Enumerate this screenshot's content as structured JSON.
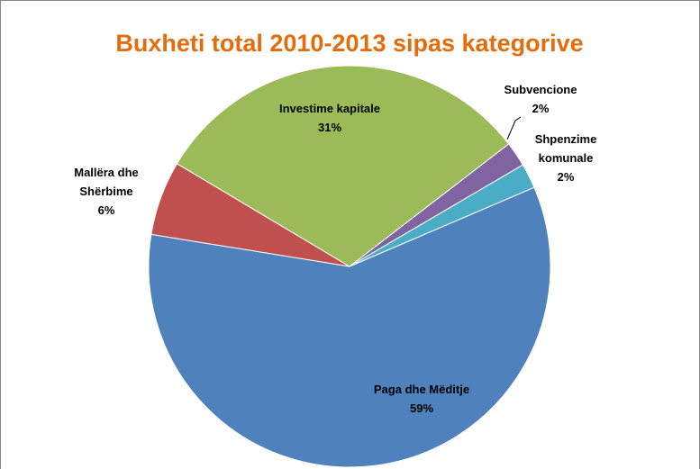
{
  "chart_data": {
    "type": "pie",
    "title": "Buxheti total 2010-2013 sipas kategorive",
    "categories": [
      "Paga dhe Mëditje",
      "Mallëra dhe\nShërbime",
      "Investime kapitale",
      "Subvencione",
      "Shpenzime\nkomunale"
    ],
    "values": [
      59,
      6,
      31,
      2,
      2
    ],
    "value_labels": [
      "59%",
      "6%",
      "31%",
      "2%",
      "2%"
    ],
    "colors": [
      "#4f81bd",
      "#c0504d",
      "#9bbb59",
      "#8064a2",
      "#4bacc6"
    ]
  }
}
